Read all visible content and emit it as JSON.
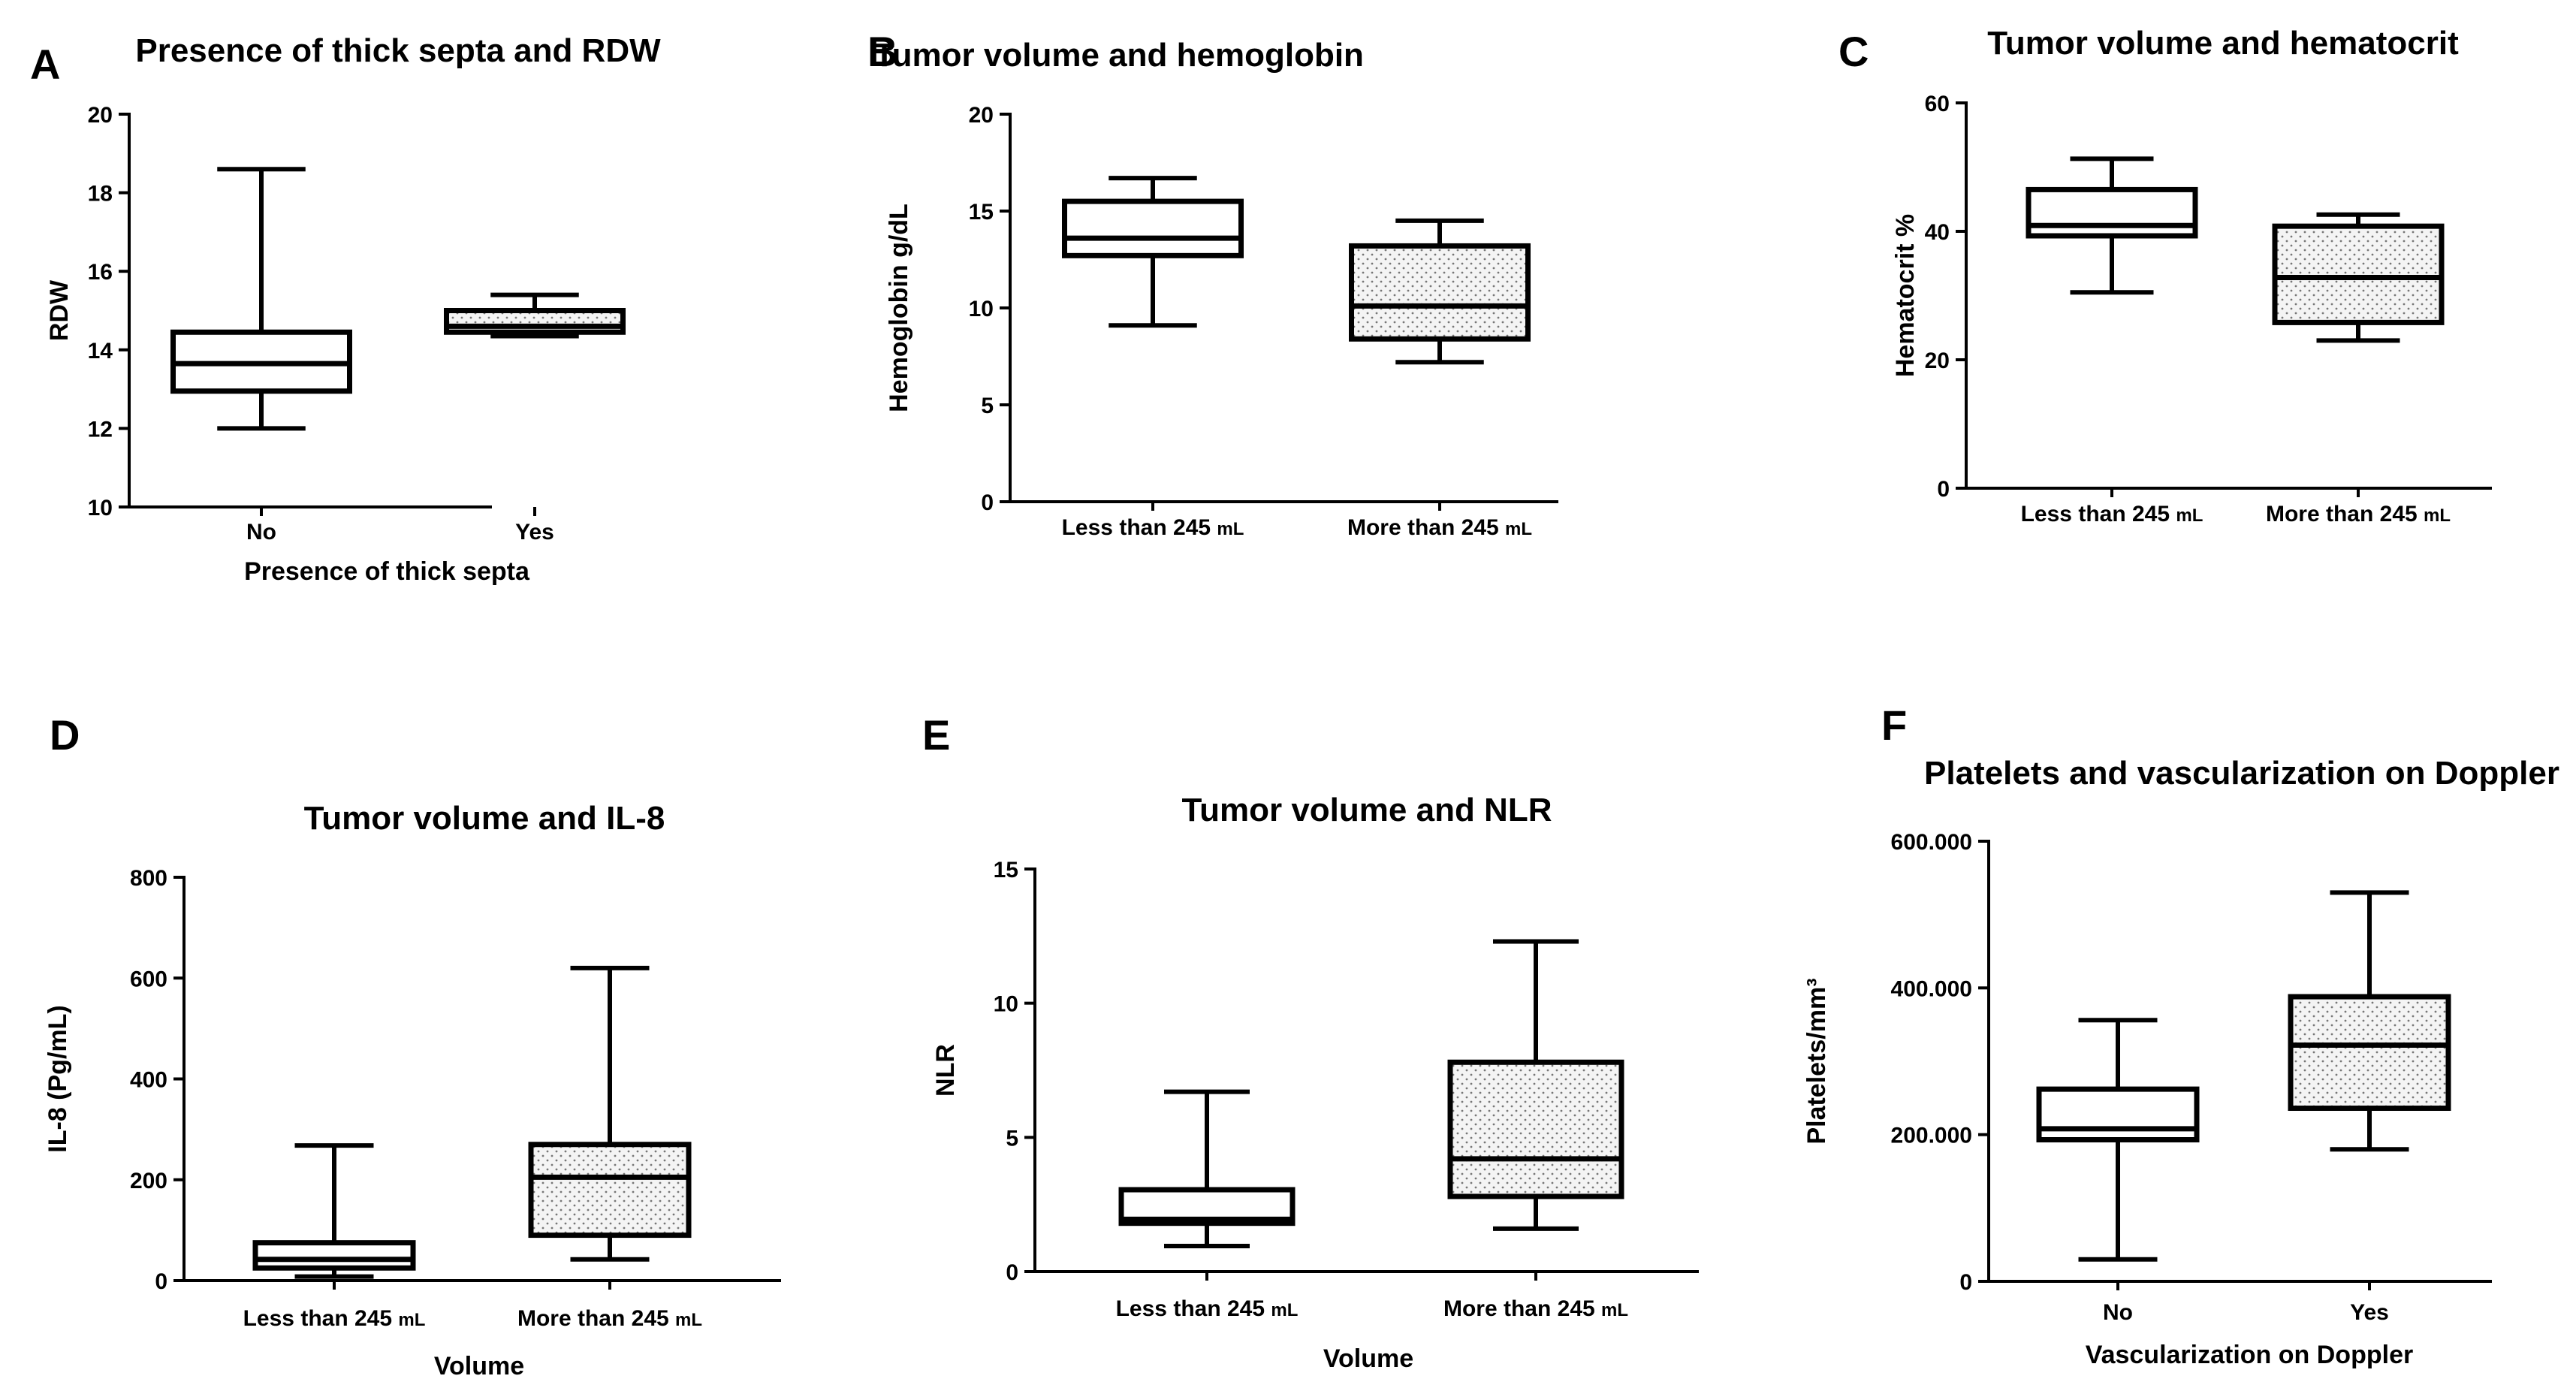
{
  "chart_data": [
    {
      "panel": "A",
      "type": "box",
      "title": "Presence of thick septa and RDW",
      "xlabel": "Presence of thick septa",
      "ylabel": "RDW",
      "ylim": [
        10,
        20
      ],
      "yticks": [
        10,
        12,
        14,
        16,
        18,
        20
      ],
      "ytick_labels": [
        "10",
        "12",
        "14",
        "16",
        "18",
        "20"
      ],
      "categories": [
        "No",
        "Yes"
      ],
      "boxes": [
        {
          "min": 12.0,
          "q1": 12.95,
          "median": 13.65,
          "q3": 14.45,
          "max": 18.6,
          "fill": "plain"
        },
        {
          "min": 14.35,
          "q1": 14.45,
          "median": 14.6,
          "q3": 15.0,
          "max": 15.4,
          "fill": "dotted"
        }
      ]
    },
    {
      "panel": "B",
      "type": "box",
      "title": "Tumor volume and hemoglobin",
      "xlabel": "",
      "ylabel": "Hemoglobin g/dL",
      "ylim": [
        0,
        20
      ],
      "yticks": [
        0,
        5,
        10,
        15,
        20
      ],
      "ytick_labels": [
        "0",
        "5",
        "10",
        "15",
        "20"
      ],
      "categories": [
        "Less than 245 mL",
        "More than 245 mL"
      ],
      "boxes": [
        {
          "min": 9.1,
          "q1": 12.7,
          "median": 13.6,
          "q3": 15.5,
          "max": 16.7,
          "fill": "plain"
        },
        {
          "min": 7.2,
          "q1": 8.4,
          "median": 10.1,
          "q3": 13.2,
          "max": 14.5,
          "fill": "dotted"
        }
      ]
    },
    {
      "panel": "C",
      "type": "box",
      "title": "Tumor volume and hematocrit",
      "xlabel": "",
      "ylabel": "Hematocrit %",
      "ylim": [
        0,
        60
      ],
      "yticks": [
        0,
        20,
        40,
        60
      ],
      "ytick_labels": [
        "0",
        "20",
        "40",
        "60"
      ],
      "categories": [
        "Less than 245 mL",
        "More than 245 mL"
      ],
      "boxes": [
        {
          "min": 30.5,
          "q1": 39.3,
          "median": 40.9,
          "q3": 46.5,
          "max": 51.3,
          "fill": "plain"
        },
        {
          "min": 23.0,
          "q1": 25.8,
          "median": 32.8,
          "q3": 40.8,
          "max": 42.6,
          "fill": "dotted"
        }
      ]
    },
    {
      "panel": "D",
      "type": "box",
      "title": "Tumor volume and IL-8",
      "xlabel": "Volume",
      "ylabel": "IL-8 (Pg/mL)",
      "ylim": [
        0,
        800
      ],
      "yticks": [
        0,
        200,
        400,
        600,
        800
      ],
      "ytick_labels": [
        "0",
        "200",
        "400",
        "600",
        "800"
      ],
      "categories": [
        "Less than 245 mL",
        "More than 245 mL"
      ],
      "boxes": [
        {
          "min": 8,
          "q1": 25,
          "median": 42,
          "q3": 75,
          "max": 268,
          "fill": "plain"
        },
        {
          "min": 42,
          "q1": 90,
          "median": 205,
          "q3": 270,
          "max": 620,
          "fill": "dotted"
        }
      ]
    },
    {
      "panel": "E",
      "type": "box",
      "title": "Tumor volume and NLR",
      "xlabel": "Volume",
      "ylabel": "NLR",
      "ylim": [
        0,
        15
      ],
      "yticks": [
        0,
        5,
        10,
        15
      ],
      "ytick_labels": [
        "0",
        "5",
        "10",
        "15"
      ],
      "categories": [
        "Less than 245 mL",
        "More than 245 mL"
      ],
      "boxes": [
        {
          "min": 0.95,
          "q1": 1.8,
          "median": 1.95,
          "q3": 3.05,
          "max": 6.7,
          "fill": "plain"
        },
        {
          "min": 1.6,
          "q1": 2.8,
          "median": 4.2,
          "q3": 7.8,
          "max": 12.3,
          "fill": "dotted"
        }
      ]
    },
    {
      "panel": "F",
      "type": "box",
      "title": "Platelets and vascularization on Doppler",
      "xlabel": "Vascularization on Doppler",
      "ylabel": "Platelets/mm³",
      "ylim": [
        0,
        600000
      ],
      "yticks": [
        0,
        200000,
        400000,
        600000
      ],
      "ytick_labels": [
        "0",
        "200.000",
        "400.000",
        "600.000"
      ],
      "categories": [
        "No",
        "Yes"
      ],
      "boxes": [
        {
          "min": 30000,
          "q1": 193000,
          "median": 208000,
          "q3": 262000,
          "max": 356000,
          "fill": "plain"
        },
        {
          "min": 180000,
          "q1": 236000,
          "median": 322000,
          "q3": 388000,
          "max": 530000,
          "fill": "dotted"
        }
      ]
    }
  ]
}
